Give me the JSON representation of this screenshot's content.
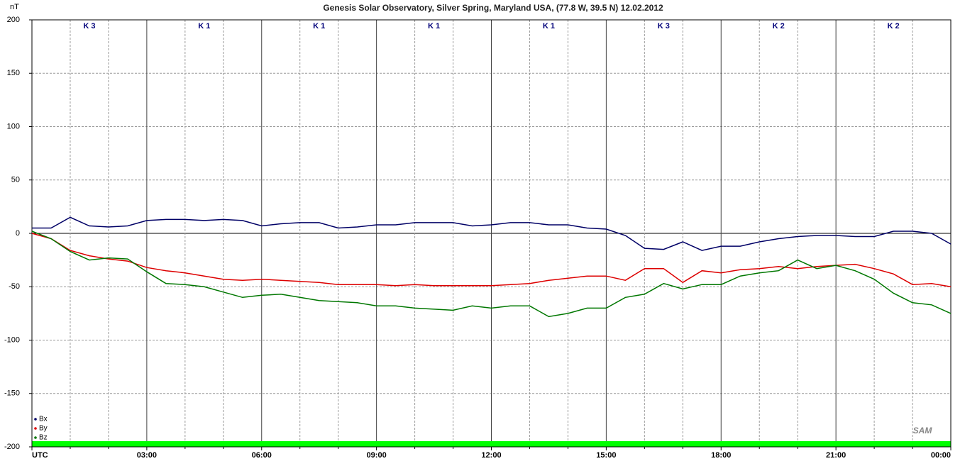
{
  "chart_data": {
    "type": "line",
    "title": "Genesis Solar Observatory, Silver Spring, Maryland USA, (77.8 W, 39.5 N)  12.02.2012",
    "y_label": "nT",
    "logo": "SAM",
    "k_labels": [
      "K 3",
      "K 1",
      "K 1",
      "K 1",
      "K 1",
      "K 3",
      "K 2",
      "K 2"
    ],
    "x": [
      0,
      0.5,
      1,
      1.5,
      2,
      2.5,
      3,
      3.5,
      4,
      4.5,
      5,
      5.5,
      6,
      6.5,
      7,
      7.5,
      8,
      8.5,
      9,
      9.5,
      10,
      10.5,
      11,
      11.5,
      12,
      12.5,
      13,
      13.5,
      14,
      14.5,
      15,
      15.5,
      16,
      16.5,
      17,
      17.5,
      18,
      18.5,
      19,
      19.5,
      20,
      20.5,
      21,
      21.5,
      22,
      22.5,
      23,
      23.5,
      24
    ],
    "series": [
      {
        "name": "Bx",
        "color": "#000066",
        "values": [
          5,
          5,
          15,
          7,
          6,
          7,
          12,
          13,
          13,
          12,
          13,
          12,
          7,
          9,
          10,
          10,
          5,
          6,
          8,
          8,
          10,
          10,
          10,
          7,
          8,
          10,
          10,
          8,
          8,
          5,
          4,
          -2,
          -14,
          -15,
          -8,
          -16,
          -12,
          -12,
          -8,
          -5,
          -3,
          -2,
          -2,
          -3,
          -3,
          2,
          2,
          0,
          -10
        ]
      },
      {
        "name": "By",
        "color": "#dd0000",
        "values": [
          0,
          -5,
          -16,
          -21,
          -24,
          -26,
          -32,
          -35,
          -37,
          -40,
          -43,
          -44,
          -43,
          -44,
          -45,
          -46,
          -48,
          -48,
          -48,
          -49,
          -48,
          -49,
          -49,
          -49,
          -49,
          -48,
          -47,
          -44,
          -42,
          -40,
          -40,
          -44,
          -33,
          -33,
          -46,
          -35,
          -37,
          -34,
          -33,
          -31,
          -33,
          -31,
          -30,
          -29,
          -33,
          -38,
          -48,
          -47,
          -50
        ]
      },
      {
        "name": "Bz",
        "color": "#007700",
        "values": [
          2,
          -5,
          -17,
          -25,
          -23,
          -24,
          -36,
          -47,
          -48,
          -50,
          -55,
          -60,
          -58,
          -57,
          -60,
          -63,
          -64,
          -65,
          -68,
          -68,
          -70,
          -71,
          -72,
          -68,
          -70,
          -68,
          -68,
          -78,
          -75,
          -70,
          -70,
          -60,
          -57,
          -47,
          -52,
          -48,
          -48,
          -40,
          -37,
          -35,
          -25,
          -33,
          -30,
          -35,
          -43,
          -56,
          -65,
          -67,
          -75
        ]
      }
    ],
    "xlim": [
      0,
      24
    ],
    "xticks": [
      {
        "value": 0,
        "label": "UTC"
      },
      {
        "value": 3,
        "label": "03:00"
      },
      {
        "value": 6,
        "label": "06:00"
      },
      {
        "value": 9,
        "label": "09:00"
      },
      {
        "value": 12,
        "label": "12:00"
      },
      {
        "value": 15,
        "label": "15:00"
      },
      {
        "value": 18,
        "label": "18:00"
      },
      {
        "value": 21,
        "label": "21:00"
      },
      {
        "value": 24,
        "label": "00:00"
      }
    ],
    "x_minor_ticks": [
      1,
      2,
      4,
      5,
      7,
      8,
      10,
      11,
      13,
      14,
      16,
      17,
      19,
      20,
      22,
      23
    ],
    "ylim": [
      -200,
      200
    ],
    "yticks": [
      -200,
      -150,
      -100,
      -50,
      0,
      50,
      100,
      150,
      200
    ],
    "grid": true,
    "legend": "lower-left",
    "status_bar_color": "#00ff00"
  }
}
